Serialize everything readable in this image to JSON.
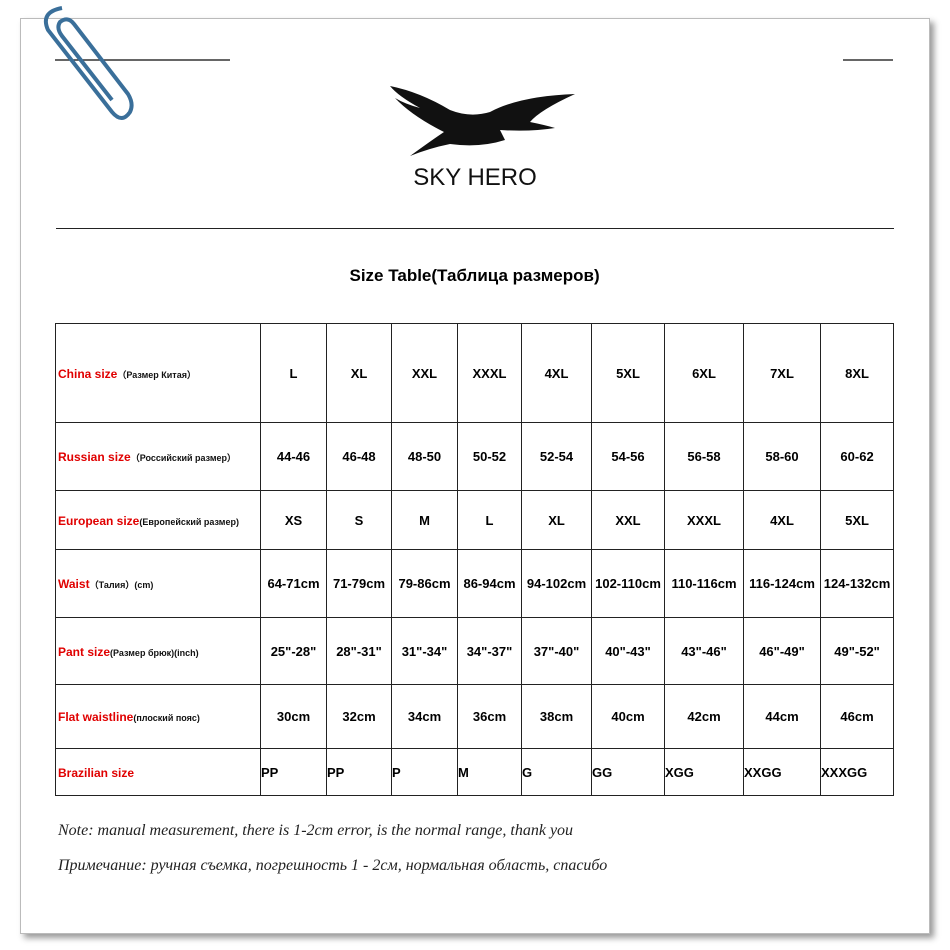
{
  "header": {
    "brand": "SKY HERO"
  },
  "table": {
    "title": "Size Table(Таблица размеров)",
    "rows": [
      {
        "label": {
          "en": "China size",
          "ru": "（Размер Китая）"
        },
        "cells": [
          "L",
          "XL",
          "XXL",
          "XXXL",
          "4XL",
          "5XL",
          "6XL",
          "7XL",
          "8XL"
        ]
      },
      {
        "label": {
          "en": "Russian size",
          "ru": "（Российский размер）"
        },
        "cells": [
          "44-46",
          "46-48",
          "48-50",
          "50-52",
          "52-54",
          "54-56",
          "56-58",
          "58-60",
          "60-62"
        ]
      },
      {
        "label": {
          "en": "European size",
          "ru": "(Европейский размер)"
        },
        "cells": [
          "XS",
          "S",
          "M",
          "L",
          "XL",
          "XXL",
          "XXXL",
          "4XL",
          "5XL"
        ]
      },
      {
        "label": {
          "en": "Waist",
          "ru": "（Талия）(cm)"
        },
        "cells": [
          "64-71cm",
          "71-79cm",
          "79-86cm",
          "86-94cm",
          "94-102cm",
          "102-110cm",
          "110-116cm",
          "116-124cm",
          "124-132cm"
        ]
      },
      {
        "label": {
          "en": "Pant size",
          "ru": "(Размер брюк)(inch)"
        },
        "cells": [
          "25\"-28\"",
          "28\"-31\"",
          "31\"-34\"",
          "34\"-37\"",
          "37\"-40\"",
          "40\"-43\"",
          "43\"-46\"",
          "46\"-49\"",
          "49\"-52\""
        ]
      },
      {
        "label": {
          "en": "Flat waistline",
          "ru": "(плоский пояс)"
        },
        "cells": [
          "30cm",
          "32cm",
          "34cm",
          "36cm",
          "38cm",
          "40cm",
          "42cm",
          "44cm",
          "46cm"
        ]
      },
      {
        "label": {
          "en": "Brazilian size"
        },
        "cells": [
          "PP",
          "PP",
          "P",
          "M",
          "G",
          "GG",
          "XGG",
          "XXGG",
          "XXXGG"
        ]
      }
    ]
  },
  "notes": [
    "Note: manual measurement, there is 1-2cm error, is the normal range, thank you",
    "Примечание: ручная съемка, погрешность 1 - 2см, нормальная область, спасибо"
  ]
}
